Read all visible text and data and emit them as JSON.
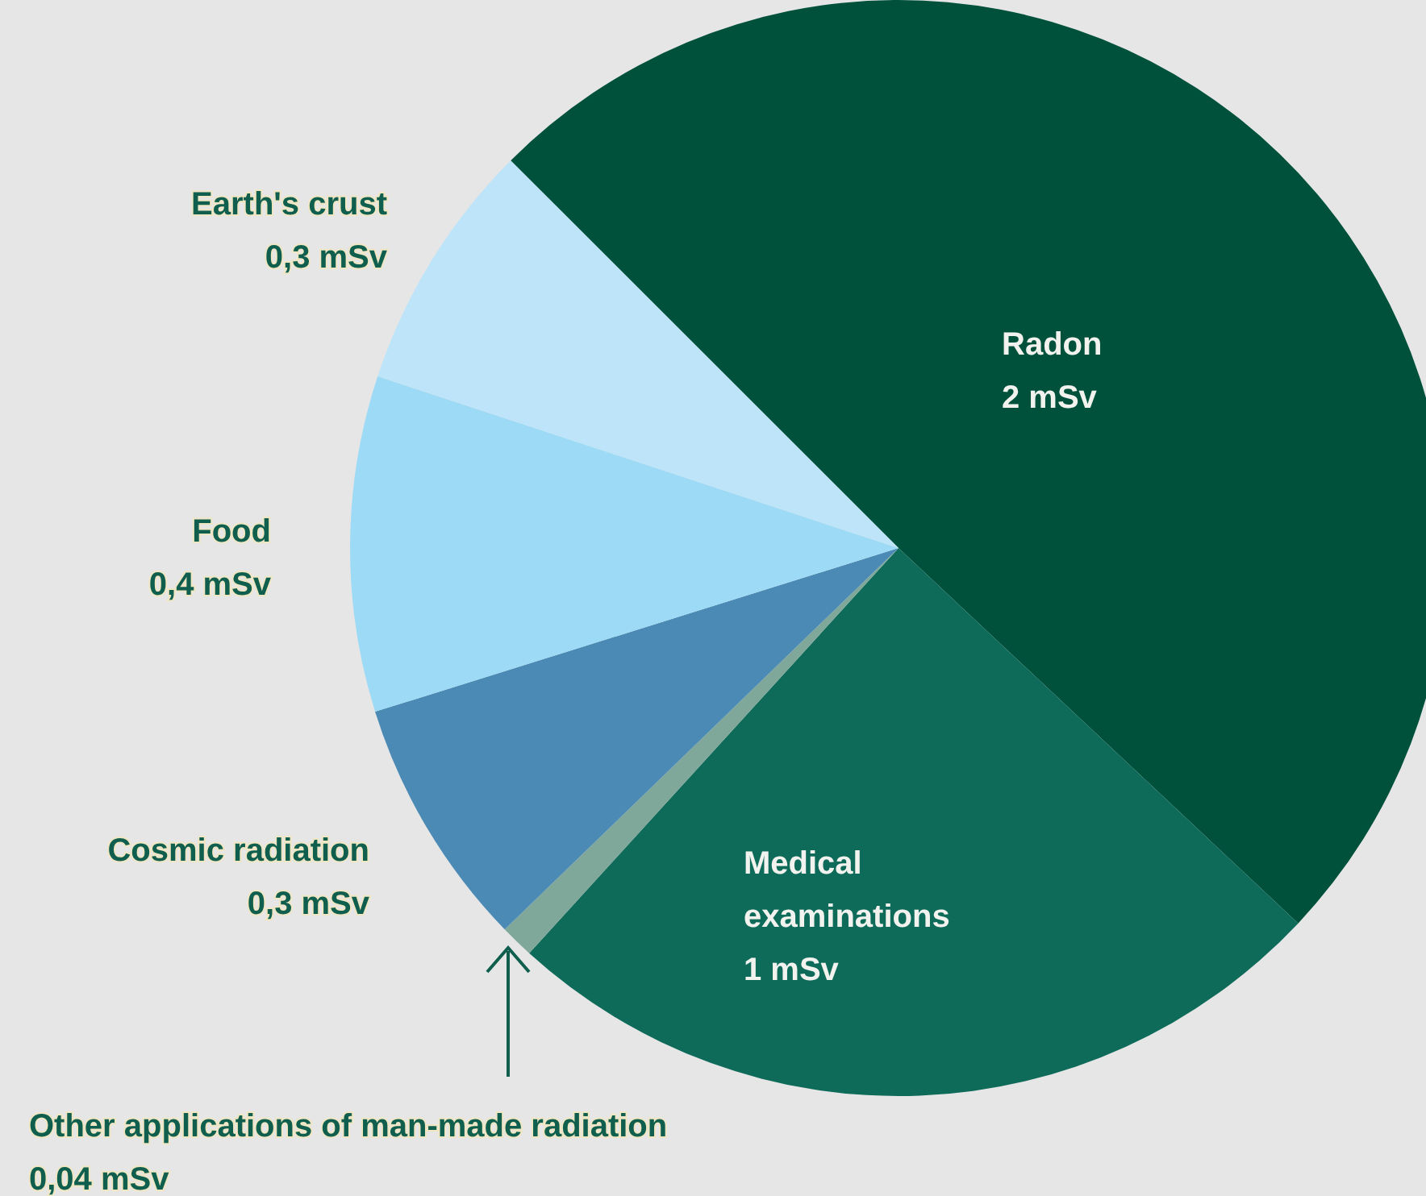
{
  "chart_data": {
    "type": "pie",
    "categories": [
      "Radon",
      "Medical examinations",
      "Other applications of man-made radiation",
      "Cosmic radiation",
      "Food",
      "Earth's crust"
    ],
    "values": [
      2,
      1,
      0.04,
      0.3,
      0.4,
      0.3
    ],
    "colors": [
      "#00513b",
      "#0e6b5a",
      "#7fa89a",
      "#4a8ab5",
      "#9ddaf5",
      "#bde4f8"
    ],
    "value_labels": [
      "2 mSv",
      "1 mSv",
      "0,04 mSv",
      "0,3 mSv",
      "0,4 mSv",
      "0,3 mSv"
    ],
    "legend": false
  }
}
